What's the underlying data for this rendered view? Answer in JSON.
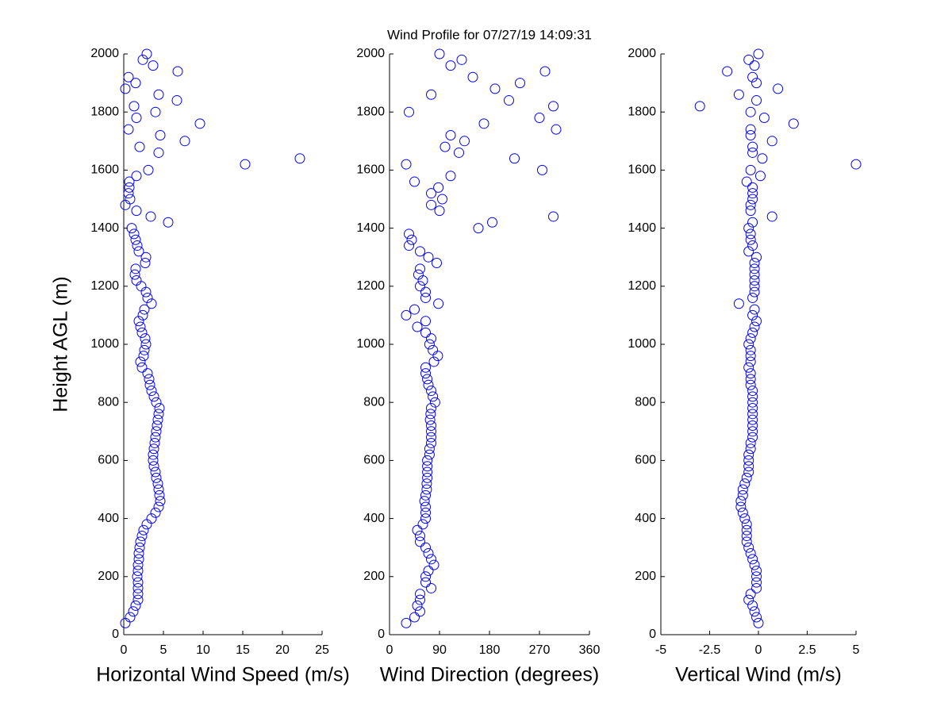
{
  "title": "Wind Profile for  07/27/19 14:09:31",
  "chart_data": [
    {
      "type": "scatter",
      "xlabel": "Horizontal Wind Speed (m/s)",
      "ylabel": "Height AGL (m)",
      "color": "#0000ff",
      "xlim": [
        0,
        25
      ],
      "xticks": [
        0,
        5,
        10,
        15,
        20,
        25
      ],
      "ylim": [
        0,
        2000
      ],
      "yticks": [
        0,
        200,
        400,
        600,
        800,
        1000,
        1200,
        1400,
        1600,
        1800,
        2000
      ],
      "x": [
        0.2,
        0.8,
        1.2,
        1.5,
        1.8,
        1.8,
        1.8,
        1.8,
        1.7,
        1.8,
        1.8,
        1.9,
        1.9,
        2.0,
        2.1,
        2.3,
        2.5,
        2.9,
        3.5,
        4.0,
        4.4,
        4.6,
        4.5,
        4.4,
        4.3,
        4.1,
        4.0,
        3.8,
        3.7,
        3.7,
        3.8,
        3.9,
        4.0,
        4.1,
        4.2,
        4.3,
        4.4,
        4.5,
        4.1,
        3.8,
        3.5,
        3.3,
        3.2,
        3.0,
        2.3,
        2.1,
        2.5,
        2.6,
        2.8,
        2.7,
        2.3,
        2.1,
        1.9,
        2.4,
        2.6,
        3.5,
        3.0,
        2.8,
        2.2,
        1.6,
        1.4,
        1.5,
        2.7,
        2.8,
        1.9,
        1.7,
        1.5,
        1.3,
        1.0,
        5.6,
        3.4,
        1.6,
        0.2,
        0.8,
        0.6,
        0.7,
        0.7,
        1.6,
        3.1,
        15.3,
        22.2,
        4.4,
        2.0,
        7.7,
        4.6,
        0.6,
        9.6,
        1.6,
        4.0,
        1.3,
        6.7,
        4.4,
        0.2,
        1.5,
        0.6,
        6.8,
        3.7,
        2.4,
        2.9
      ],
      "values": [
        40,
        60,
        80,
        100,
        120,
        140,
        160,
        180,
        200,
        220,
        240,
        260,
        280,
        300,
        320,
        340,
        360,
        380,
        400,
        420,
        440,
        460,
        480,
        500,
        520,
        540,
        560,
        580,
        600,
        620,
        640,
        660,
        680,
        700,
        720,
        740,
        760,
        780,
        800,
        820,
        840,
        860,
        880,
        900,
        920,
        940,
        960,
        980,
        1000,
        1020,
        1040,
        1060,
        1080,
        1100,
        1120,
        1140,
        1160,
        1180,
        1200,
        1220,
        1240,
        1260,
        1280,
        1300,
        1320,
        1340,
        1360,
        1380,
        1400,
        1420,
        1440,
        1460,
        1480,
        1500,
        1520,
        1540,
        1560,
        1580,
        1600,
        1620,
        1640,
        1660,
        1680,
        1700,
        1720,
        1740,
        1760,
        1780,
        1800,
        1820,
        1840,
        1860,
        1880,
        1900,
        1920,
        1940,
        1960,
        1980,
        2000
      ]
    },
    {
      "type": "scatter",
      "xlabel": "Wind Direction (degrees)",
      "color": "#0000ff",
      "xlim": [
        0,
        360
      ],
      "xticks": [
        0,
        90,
        180,
        270,
        360
      ],
      "ylim": [
        0,
        2000
      ],
      "yticks": [
        0,
        200,
        400,
        600,
        800,
        1000,
        1200,
        1400,
        1600,
        1800,
        2000
      ],
      "x": [
        30,
        45,
        55,
        50,
        55,
        55,
        75,
        65,
        65,
        70,
        80,
        75,
        70,
        65,
        55,
        55,
        50,
        60,
        65,
        65,
        65,
        63,
        65,
        67,
        67,
        68,
        68,
        68,
        68,
        72,
        72,
        75,
        75,
        75,
        75,
        73,
        74,
        75,
        82,
        78,
        75,
        70,
        68,
        65,
        65,
        80,
        87,
        78,
        72,
        75,
        65,
        50,
        65,
        30,
        45,
        88,
        65,
        65,
        55,
        60,
        52,
        55,
        85,
        70,
        55,
        35,
        40,
        35,
        160,
        185,
        295,
        90,
        75,
        95,
        75,
        88,
        45,
        110,
        275,
        30,
        225,
        125,
        100,
        135,
        110,
        300,
        170,
        270,
        35,
        295,
        215,
        75,
        190,
        235,
        150,
        280,
        110,
        130,
        90
      ],
      "values": [
        40,
        60,
        80,
        100,
        120,
        140,
        160,
        180,
        200,
        220,
        240,
        260,
        280,
        300,
        320,
        340,
        360,
        380,
        400,
        420,
        440,
        460,
        480,
        500,
        520,
        540,
        560,
        580,
        600,
        620,
        640,
        660,
        680,
        700,
        720,
        740,
        760,
        780,
        800,
        820,
        840,
        860,
        880,
        900,
        920,
        940,
        960,
        980,
        1000,
        1020,
        1040,
        1060,
        1080,
        1100,
        1120,
        1140,
        1160,
        1180,
        1200,
        1220,
        1240,
        1260,
        1280,
        1300,
        1320,
        1340,
        1360,
        1380,
        1400,
        1420,
        1440,
        1460,
        1480,
        1500,
        1520,
        1540,
        1560,
        1580,
        1600,
        1620,
        1640,
        1660,
        1680,
        1700,
        1720,
        1740,
        1760,
        1780,
        1800,
        1820,
        1840,
        1860,
        1880,
        1900,
        1920,
        1940,
        1960,
        1980,
        2000
      ]
    },
    {
      "type": "scatter",
      "xlabel": "Vertical Wind (m/s)",
      "color": "#0000ff",
      "xlim": [
        -5,
        5
      ],
      "xticks": [
        -5,
        -2.5,
        0,
        2.5,
        5
      ],
      "ylim": [
        0,
        2000
      ],
      "yticks": [
        0,
        200,
        400,
        600,
        800,
        1000,
        1200,
        1400,
        1600,
        1800,
        2000
      ],
      "x": [
        0,
        -0.1,
        -0.2,
        -0.3,
        -0.5,
        -0.4,
        -0.1,
        -0.1,
        -0.1,
        -0.1,
        -0.2,
        -0.3,
        -0.4,
        -0.5,
        -0.6,
        -0.6,
        -0.6,
        -0.6,
        -0.7,
        -0.8,
        -0.9,
        -0.9,
        -0.8,
        -0.8,
        -0.7,
        -0.6,
        -0.5,
        -0.5,
        -0.5,
        -0.5,
        -0.4,
        -0.4,
        -0.3,
        -0.3,
        -0.3,
        -0.3,
        -0.3,
        -0.3,
        -0.3,
        -0.3,
        -0.3,
        -0.4,
        -0.4,
        -0.4,
        -0.5,
        -0.4,
        -0.4,
        -0.4,
        -0.5,
        -0.4,
        -0.3,
        -0.2,
        -0.1,
        -0.3,
        -0.2,
        -1.0,
        -0.3,
        -0.2,
        -0.2,
        -0.2,
        -0.2,
        -0.2,
        -0.2,
        -0.1,
        -0.5,
        -0.3,
        -0.4,
        -0.4,
        -0.5,
        -0.3,
        0.7,
        -0.4,
        -0.4,
        -0.3,
        -0.3,
        -0.3,
        -0.6,
        0.1,
        -0.4,
        5.0,
        0.2,
        -0.3,
        -0.3,
        0.7,
        -0.4,
        -0.4,
        1.8,
        0.3,
        -0.4,
        -3.0,
        -0.1,
        -1.0,
        1.0,
        -0.1,
        -0.3,
        -1.6,
        -0.2,
        -0.5,
        0
      ],
      "values": [
        40,
        60,
        80,
        100,
        120,
        140,
        160,
        180,
        200,
        220,
        240,
        260,
        280,
        300,
        320,
        340,
        360,
        380,
        400,
        420,
        440,
        460,
        480,
        500,
        520,
        540,
        560,
        580,
        600,
        620,
        640,
        660,
        680,
        700,
        720,
        740,
        760,
        780,
        800,
        820,
        840,
        860,
        880,
        900,
        920,
        940,
        960,
        980,
        1000,
        1020,
        1040,
        1060,
        1080,
        1100,
        1120,
        1140,
        1160,
        1180,
        1200,
        1220,
        1240,
        1260,
        1280,
        1300,
        1320,
        1340,
        1360,
        1380,
        1400,
        1420,
        1440,
        1460,
        1480,
        1500,
        1520,
        1540,
        1560,
        1580,
        1600,
        1620,
        1640,
        1660,
        1680,
        1700,
        1720,
        1740,
        1760,
        1780,
        1800,
        1820,
        1840,
        1860,
        1880,
        1900,
        1920,
        1940,
        1960,
        1980,
        2000
      ]
    }
  ]
}
